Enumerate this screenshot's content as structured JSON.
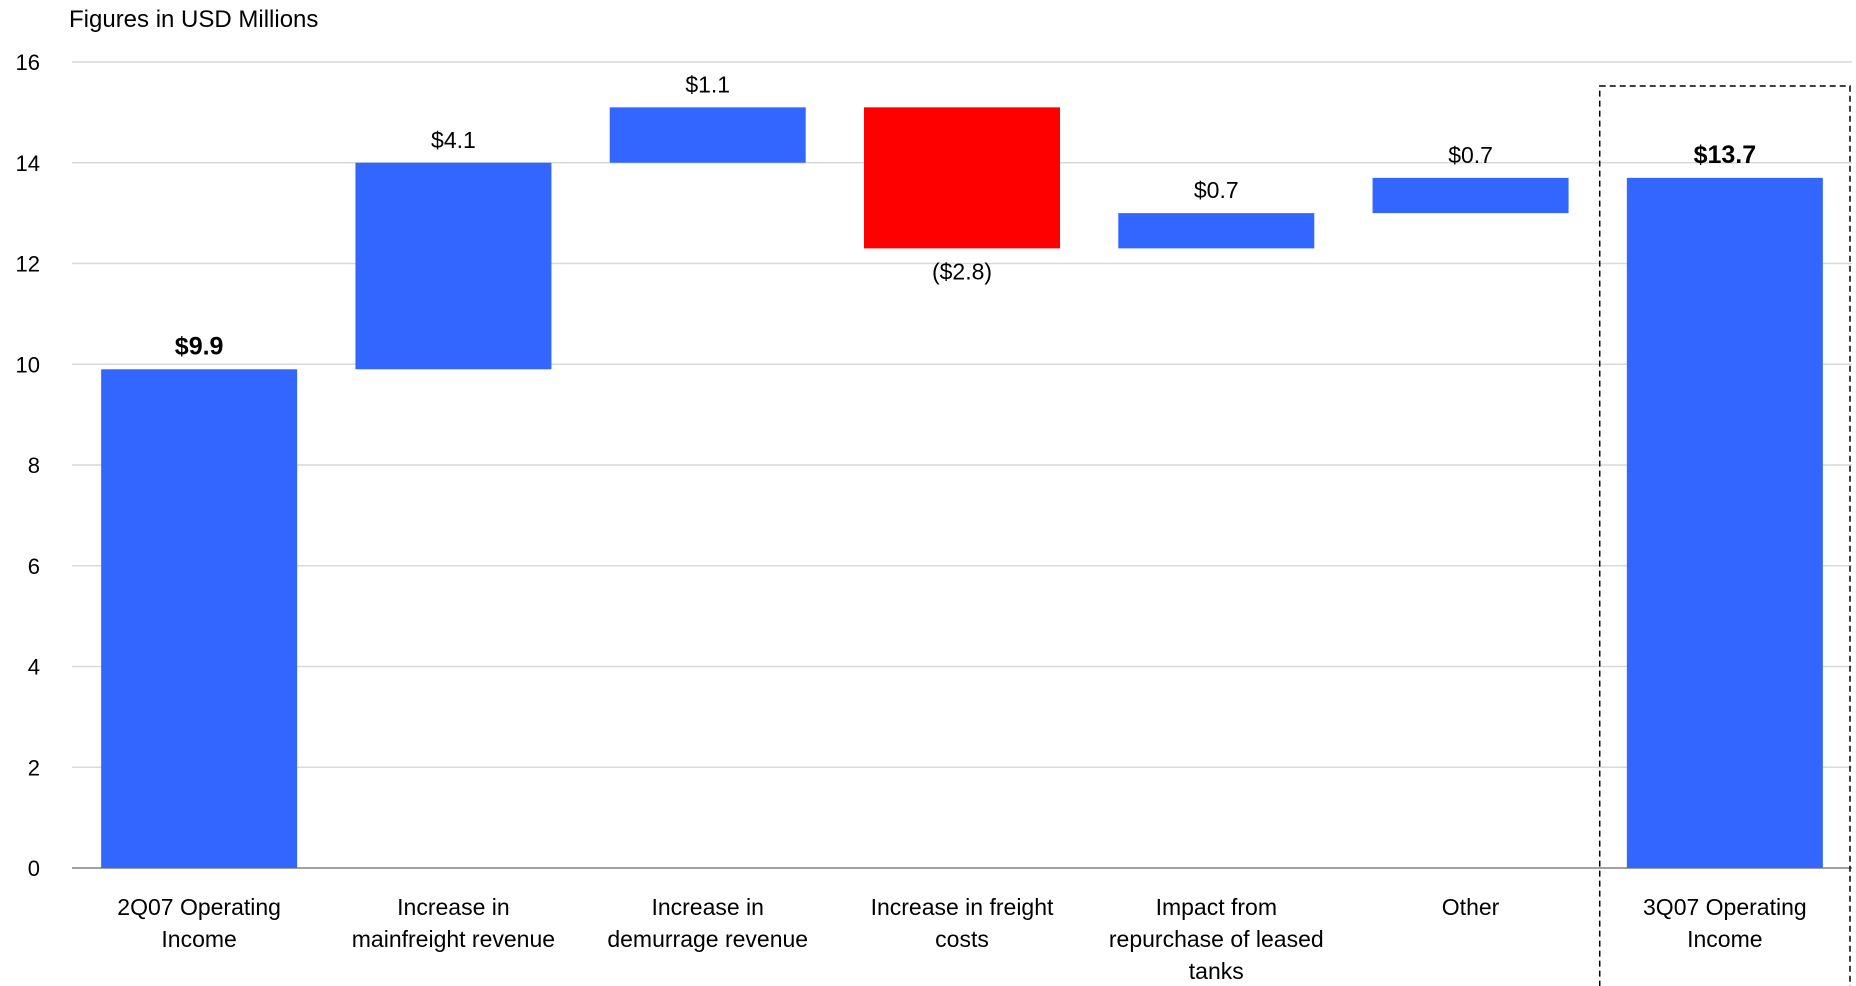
{
  "chart_data": {
    "type": "bar",
    "subtitle": "Figures in USD Millions",
    "ylim": [
      0,
      16
    ],
    "y_ticks": [
      0,
      2,
      4,
      6,
      8,
      10,
      12,
      14,
      16
    ],
    "grid": true,
    "colors": {
      "increase": "#3366FF",
      "decrease": "#FF0000",
      "total": "#3366FF"
    },
    "bars": [
      {
        "category": [
          "2Q07 Operating",
          "Income"
        ],
        "start": 0,
        "end": 9.9,
        "label": "$9.9",
        "kind": "total",
        "label_bold": true
      },
      {
        "category": [
          "Increase in",
          "mainfreight revenue"
        ],
        "start": 9.9,
        "end": 14.0,
        "label": "$4.1",
        "kind": "increase",
        "label_bold": false
      },
      {
        "category": [
          "Increase in",
          "demurrage revenue"
        ],
        "start": 14.0,
        "end": 15.1,
        "label": "$1.1",
        "kind": "increase",
        "label_bold": false
      },
      {
        "category": [
          "Increase in freight",
          "costs"
        ],
        "start": 15.1,
        "end": 12.3,
        "label": "($2.8)",
        "kind": "decrease",
        "label_bold": false
      },
      {
        "category": [
          "Impact from",
          "repurchase of leased",
          "tanks"
        ],
        "start": 12.3,
        "end": 13.0,
        "label": "$0.7",
        "kind": "increase",
        "label_bold": false
      },
      {
        "category": [
          "Other"
        ],
        "start": 13.0,
        "end": 13.7,
        "label": "$0.7",
        "kind": "increase",
        "label_bold": false
      },
      {
        "category": [
          "3Q07 Operating",
          "Income"
        ],
        "start": 0,
        "end": 13.7,
        "label": "$13.7",
        "kind": "total",
        "label_bold": true,
        "highlighted": true
      }
    ]
  }
}
